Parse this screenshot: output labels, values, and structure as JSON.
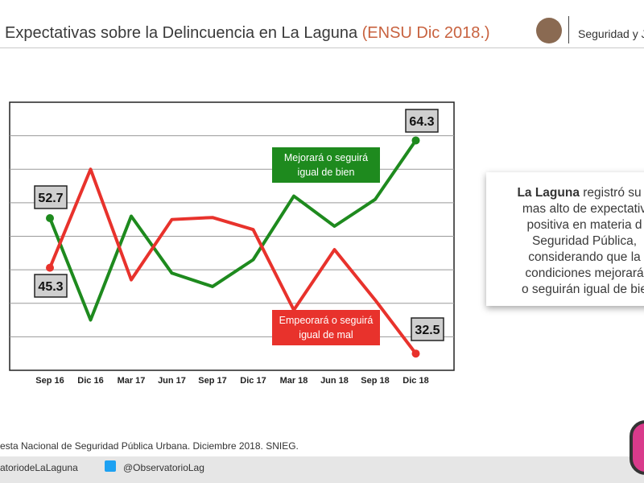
{
  "header": {
    "title": "Expectativas sobre la Delincuencia en La Laguna",
    "subtitle": "(ENSU Dic 2018.)",
    "org": "Seguridad y J"
  },
  "chart_data": {
    "type": "line",
    "categories": [
      "Sep 16",
      "Dic 16",
      "Mar 17",
      "Jun 17",
      "Sep 17",
      "Dic 17",
      "Mar 18",
      "Jun 18",
      "Sep 18",
      "Dic 18"
    ],
    "series": [
      {
        "name": "Mejorará o seguirá igual de bien",
        "color": "#1e8a1e",
        "values": [
          52.7,
          37.5,
          53.0,
          44.5,
          42.5,
          46.5,
          56.0,
          51.5,
          55.5,
          64.3
        ]
      },
      {
        "name": "Empeorará o seguirá igual de mal",
        "color": "#e8322c",
        "values": [
          45.3,
          60.0,
          43.5,
          52.5,
          52.8,
          51.0,
          39.0,
          48.0,
          40.5,
          32.5
        ]
      }
    ],
    "ylim": [
      30,
      70
    ],
    "grid": true,
    "labels": {
      "green_start": "52.7",
      "red_start": "45.3",
      "green_end": "64.3",
      "red_end": "32.5"
    },
    "legend": {
      "green": [
        "Mejorará o seguirá",
        "igual de bien"
      ],
      "red": [
        "Empeorará o seguirá",
        "igual de mal"
      ]
    }
  },
  "callout": {
    "bold": "La Laguna",
    "text1": " registró su n",
    "lines": [
      "mas alto de expectativ",
      "positiva en materia d",
      "Seguridad Pública,",
      "considerando que la",
      "condiciones mejorará",
      "o seguirán igual de bie"
    ]
  },
  "footer": {
    "source": "esta Nacional de Seguridad Pública Urbana. Diciembre 2018. SNIEG.",
    "facebook": "atoriodeLaLaguna",
    "twitter": "@ObservatorioLag"
  },
  "colors": {
    "accent": "#c8623f",
    "green": "#1e8a1e",
    "red": "#e8322c"
  }
}
